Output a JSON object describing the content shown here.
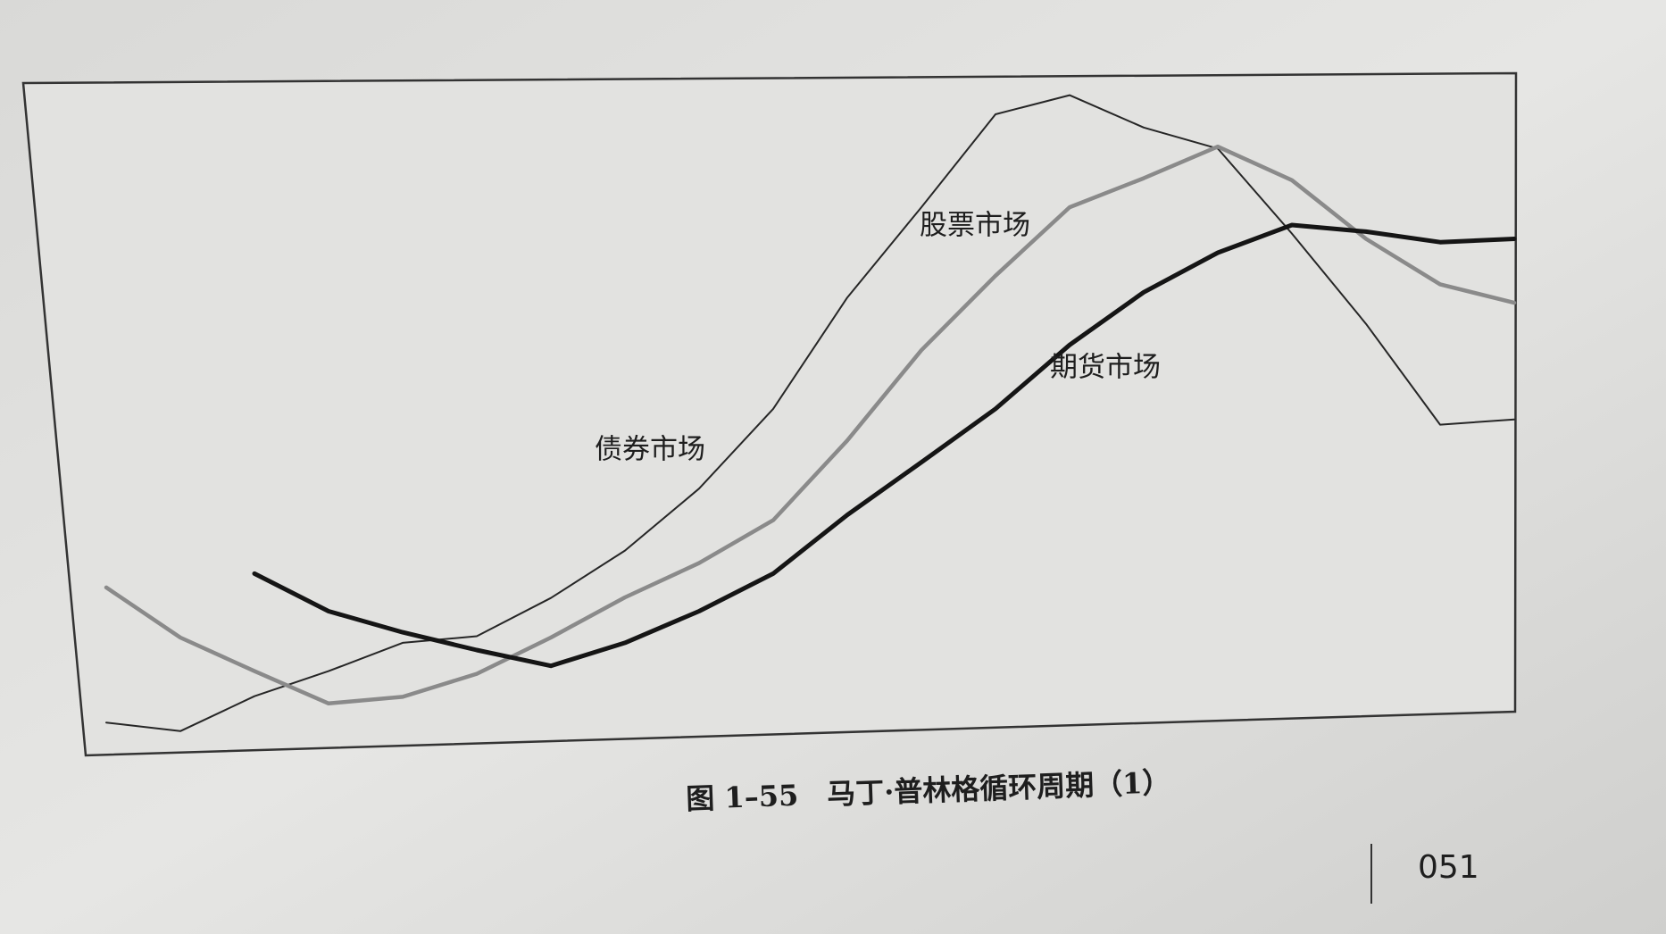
{
  "chart_data": {
    "type": "line",
    "title": "图 1–55　马丁·普林格循环周期（1）",
    "x": [
      0,
      5,
      10,
      15,
      20,
      25,
      30,
      35,
      40,
      45,
      50,
      55,
      60,
      65,
      70,
      75,
      80,
      85,
      90,
      95,
      100
    ],
    "xlim": [
      0,
      100
    ],
    "ylim": [
      0,
      100
    ],
    "series": [
      {
        "name": "债券市场",
        "color": "#262626",
        "values": [
          null,
          1.6,
          0.3,
          5.6,
          9.4,
          13.7,
          14.7,
          20.5,
          27.7,
          37.1,
          49.2,
          66.1,
          79.8,
          93.9,
          96.8,
          91.9,
          88.7,
          75.8,
          62.1,
          46.8,
          47.6
        ]
      },
      {
        "name": "股票市场",
        "color": "#8a8a8a",
        "values": [
          null,
          22.1,
          14.5,
          9.4,
          4.5,
          5.5,
          9.0,
          14.5,
          20.6,
          25.8,
          32.3,
          44.4,
          58.1,
          69.4,
          79.8,
          84.2,
          89.0,
          83.9,
          75.0,
          68.1,
          65.3
        ]
      },
      {
        "name": "期货市场",
        "color": "#151515",
        "values": [
          null,
          null,
          null,
          24.2,
          18.5,
          15.3,
          12.6,
          10.2,
          13.7,
          18.5,
          24.2,
          33.1,
          41.1,
          49.2,
          58.9,
          66.9,
          72.9,
          77.1,
          76.1,
          74.5,
          75.0
        ]
      }
    ]
  },
  "page": {
    "number": "051"
  }
}
